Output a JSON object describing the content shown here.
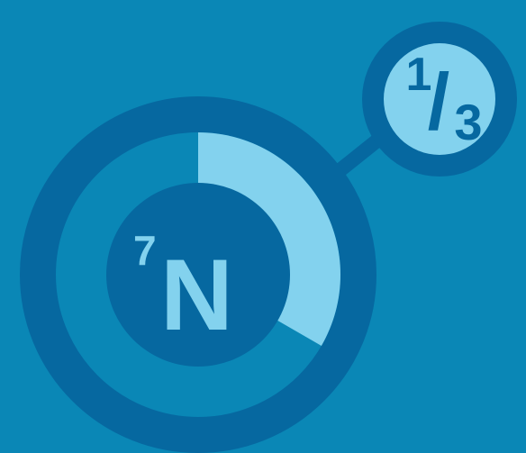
{
  "element": {
    "symbol": "N",
    "atomic_number": "7"
  },
  "fraction": {
    "numerator": "1",
    "slash": "/",
    "denominator": "3",
    "value": 0.3333
  },
  "colors": {
    "background": "#0a87b6",
    "ring": "#0668a0",
    "fill": "#83d2ee",
    "inner": "#0a76aa"
  },
  "icons": {
    "ring": "donut-progress-ring",
    "connector": "connector-line",
    "badge": "fraction-badge"
  }
}
